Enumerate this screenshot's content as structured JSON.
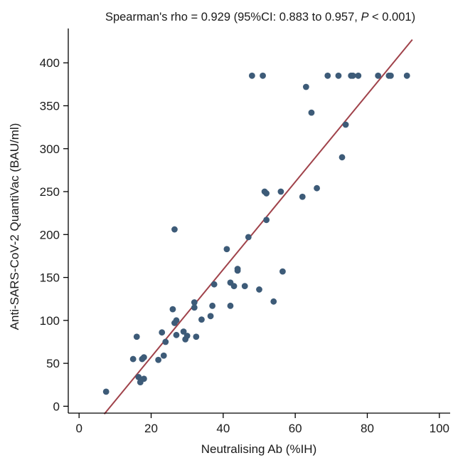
{
  "chart_data": {
    "type": "scatter",
    "title_parts": {
      "before_p": "Spearman's rho = 0.929 (95%CI: 0.883 to 0.957, ",
      "p_symbol": "P",
      "after_p": " < 0.001)"
    },
    "xlabel": "Neutralising Ab (%IH)",
    "ylabel": "Anti-SARS-CoV-2 QuantiVac (BAU/ml)",
    "xlim": [
      -3,
      103
    ],
    "ylim": [
      -8,
      440
    ],
    "x_ticks": [
      0,
      20,
      40,
      60,
      80,
      100
    ],
    "y_ticks": [
      0,
      50,
      100,
      150,
      200,
      250,
      300,
      350,
      400
    ],
    "grid": false,
    "colors": {
      "points": "#3d5b78",
      "fit_line": "#a0424a",
      "axis": "#000000"
    },
    "points": [
      [
        7.5,
        17
      ],
      [
        15,
        55
      ],
      [
        16,
        81
      ],
      [
        16.5,
        34
      ],
      [
        17,
        28
      ],
      [
        17.5,
        55
      ],
      [
        18,
        57
      ],
      [
        18,
        32
      ],
      [
        22,
        54
      ],
      [
        23,
        86
      ],
      [
        23.5,
        59
      ],
      [
        24,
        75
      ],
      [
        26,
        113
      ],
      [
        26.5,
        97
      ],
      [
        26.5,
        206
      ],
      [
        27,
        100
      ],
      [
        27,
        83
      ],
      [
        29,
        87
      ],
      [
        29.5,
        78
      ],
      [
        30,
        82
      ],
      [
        32,
        121
      ],
      [
        32,
        115
      ],
      [
        32.5,
        81
      ],
      [
        34,
        101
      ],
      [
        36.5,
        105
      ],
      [
        37,
        117
      ],
      [
        37.5,
        142
      ],
      [
        41,
        183
      ],
      [
        42,
        117
      ],
      [
        42,
        144
      ],
      [
        43,
        140
      ],
      [
        44,
        158
      ],
      [
        44,
        160
      ],
      [
        46,
        140
      ],
      [
        47,
        197
      ],
      [
        48,
        385
      ],
      [
        50,
        136
      ],
      [
        51,
        385
      ],
      [
        51.5,
        250
      ],
      [
        52,
        248
      ],
      [
        52,
        217
      ],
      [
        54,
        122
      ],
      [
        56,
        250
      ],
      [
        56.5,
        157
      ],
      [
        62,
        244
      ],
      [
        63,
        372
      ],
      [
        64.5,
        342
      ],
      [
        66,
        254
      ],
      [
        69,
        385
      ],
      [
        72,
        385
      ],
      [
        73,
        290
      ],
      [
        74,
        328
      ],
      [
        75.5,
        385
      ],
      [
        76,
        385
      ],
      [
        77.5,
        385
      ],
      [
        83,
        385
      ],
      [
        86,
        385
      ],
      [
        86.5,
        385
      ],
      [
        91,
        385
      ]
    ],
    "fit_line": {
      "x": [
        7,
        92.5
      ],
      "y": [
        -9,
        427
      ]
    }
  }
}
